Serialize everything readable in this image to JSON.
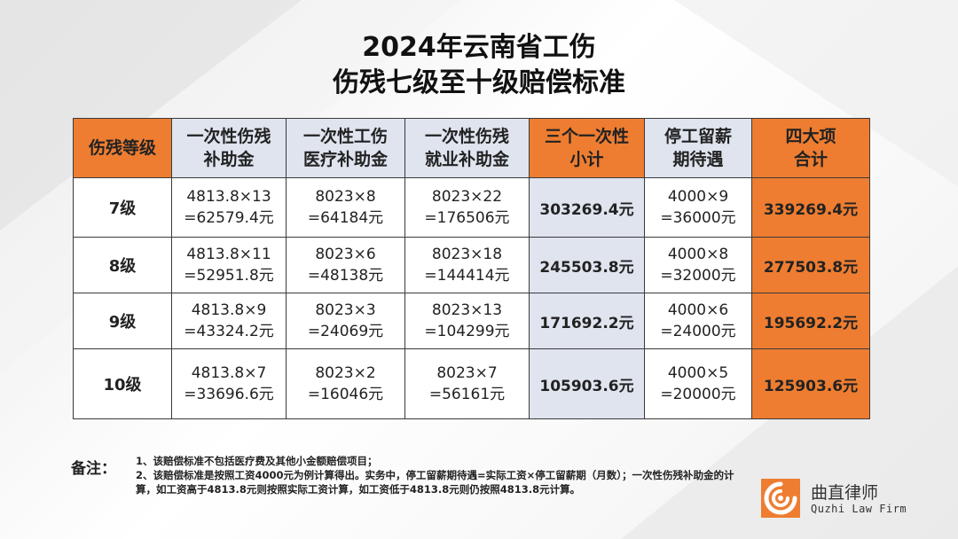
{
  "title": {
    "line1": "2024年云南省工伤",
    "line2": "伤残七级至十级赔偿标准"
  },
  "table": {
    "headers": {
      "grade": "伤残等级",
      "disability": [
        "一次性伤残",
        "补助金"
      ],
      "medical": [
        "一次性工伤",
        "医疗补助金"
      ],
      "employment": [
        "一次性伤残",
        "就业补助金"
      ],
      "subtotal": [
        "三个一次性",
        "小计"
      ],
      "leave": [
        "停工留薪",
        "期待遇"
      ],
      "total": [
        "四大项",
        "合计"
      ]
    },
    "rows": [
      {
        "grade": "7级",
        "disability": [
          "4813.8×13",
          "=62579.4元"
        ],
        "medical": [
          "8023×8",
          "=64184元"
        ],
        "employment": [
          "8023×22",
          "=176506元"
        ],
        "subtotal": "303269.4元",
        "leave": [
          "4000×9",
          "=36000元"
        ],
        "total": "339269.4元"
      },
      {
        "grade": "8级",
        "disability": [
          "4813.8×11",
          "=52951.8元"
        ],
        "medical": [
          "8023×6",
          "=48138元"
        ],
        "employment": [
          "8023×18",
          "=144414元"
        ],
        "subtotal": "245503.8元",
        "leave": [
          "4000×8",
          "=32000元"
        ],
        "total": "277503.8元"
      },
      {
        "grade": "9级",
        "disability": [
          "4813.8×9",
          "=43324.2元"
        ],
        "medical": [
          "8023×3",
          "=24069元"
        ],
        "employment": [
          "8023×13",
          "=104299元"
        ],
        "subtotal": "171692.2元",
        "leave": [
          "4000×6",
          "=24000元"
        ],
        "total": "195692.2元"
      },
      {
        "grade": "10级",
        "disability": [
          "4813.8×7",
          "=33696.6元"
        ],
        "medical": [
          "8023×2",
          "=16046元"
        ],
        "employment": [
          "8023×7",
          "=56161元"
        ],
        "subtotal": "105903.6元",
        "leave": [
          "4000×5",
          "=20000元"
        ],
        "total": "125903.6元"
      }
    ]
  },
  "notes": {
    "label": "备注：",
    "items": [
      "1、该赔偿标准不包括医疗费及其他小金额赔偿项目；",
      "2、该赔偿标准是按照工资4000元为例计算得出。实务中，停工留薪期待遇=实际工资×停工留薪期（月数）；一次性伤残补助金的计算，如工资高于4813.8元则按照实际工资计算，如工资低于4813.8元则仍按照4813.8元计算。"
    ]
  },
  "logo": {
    "name_cn": "曲直律师",
    "name_en": "Quzhi Law Firm",
    "icon": "swirl-logo-icon"
  },
  "colors": {
    "accent_orange": "#ee7d31",
    "header_grey": "#dfe4ef",
    "border": "#3a3a3a"
  }
}
